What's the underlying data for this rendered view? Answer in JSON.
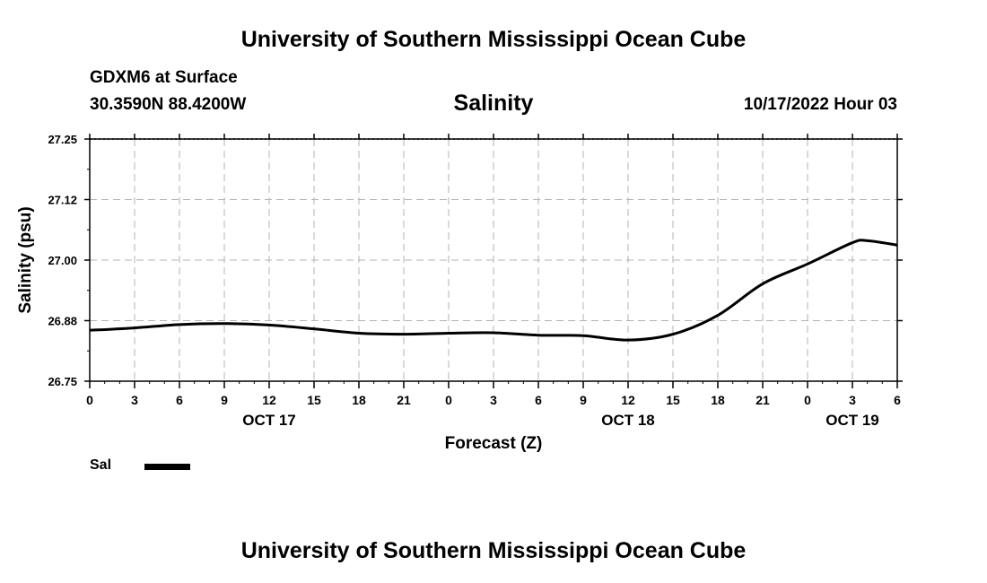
{
  "header": {
    "title": "University of Southern Mississippi Ocean Cube",
    "station": "GDXM6 at Surface",
    "coordinates": "30.3590N  88.4200W",
    "timestamp": "10/17/2022 Hour 03"
  },
  "footer": {
    "title": "University of Southern Mississippi Ocean Cube"
  },
  "legend": {
    "label": "Sal",
    "color": "#000000"
  },
  "chart_data": {
    "type": "line",
    "title": "Salinity",
    "xlabel": "Forecast (Z)",
    "ylabel": "Salinity (psu)",
    "ylim": [
      26.75,
      27.25
    ],
    "xlim": [
      0,
      54
    ],
    "grid": true,
    "yticks": [
      {
        "value": 26.75,
        "label": "26.75"
      },
      {
        "value": 26.875,
        "label": "26.88"
      },
      {
        "value": 27.0,
        "label": "27.00"
      },
      {
        "value": 27.125,
        "label": "27.12"
      },
      {
        "value": 27.25,
        "label": "27.25"
      }
    ],
    "xticks": [
      {
        "value": 0,
        "label": "0"
      },
      {
        "value": 3,
        "label": "3"
      },
      {
        "value": 6,
        "label": "6"
      },
      {
        "value": 9,
        "label": "9"
      },
      {
        "value": 12,
        "label": "12"
      },
      {
        "value": 15,
        "label": "15"
      },
      {
        "value": 18,
        "label": "18"
      },
      {
        "value": 21,
        "label": "21"
      },
      {
        "value": 24,
        "label": "0"
      },
      {
        "value": 27,
        "label": "3"
      },
      {
        "value": 30,
        "label": "6"
      },
      {
        "value": 33,
        "label": "9"
      },
      {
        "value": 36,
        "label": "12"
      },
      {
        "value": 39,
        "label": "15"
      },
      {
        "value": 42,
        "label": "18"
      },
      {
        "value": 45,
        "label": "21"
      },
      {
        "value": 48,
        "label": "0"
      },
      {
        "value": 51,
        "label": "3"
      },
      {
        "value": 54,
        "label": "6"
      }
    ],
    "date_labels": [
      {
        "value": 12,
        "label": "OCT 17"
      },
      {
        "value": 36,
        "label": "OCT 18"
      },
      {
        "value": 51,
        "label": "OCT 19"
      }
    ],
    "series": [
      {
        "name": "Sal",
        "x": [
          0,
          3,
          6,
          9,
          12,
          15,
          18,
          21,
          24,
          27,
          30,
          33,
          36,
          39,
          42,
          45,
          48,
          51,
          52,
          54
        ],
        "values": [
          26.855,
          26.86,
          26.867,
          26.869,
          26.866,
          26.858,
          26.849,
          26.847,
          26.849,
          26.85,
          26.845,
          26.844,
          26.835,
          26.847,
          26.886,
          26.951,
          26.992,
          27.036,
          27.04,
          27.031
        ]
      }
    ]
  }
}
